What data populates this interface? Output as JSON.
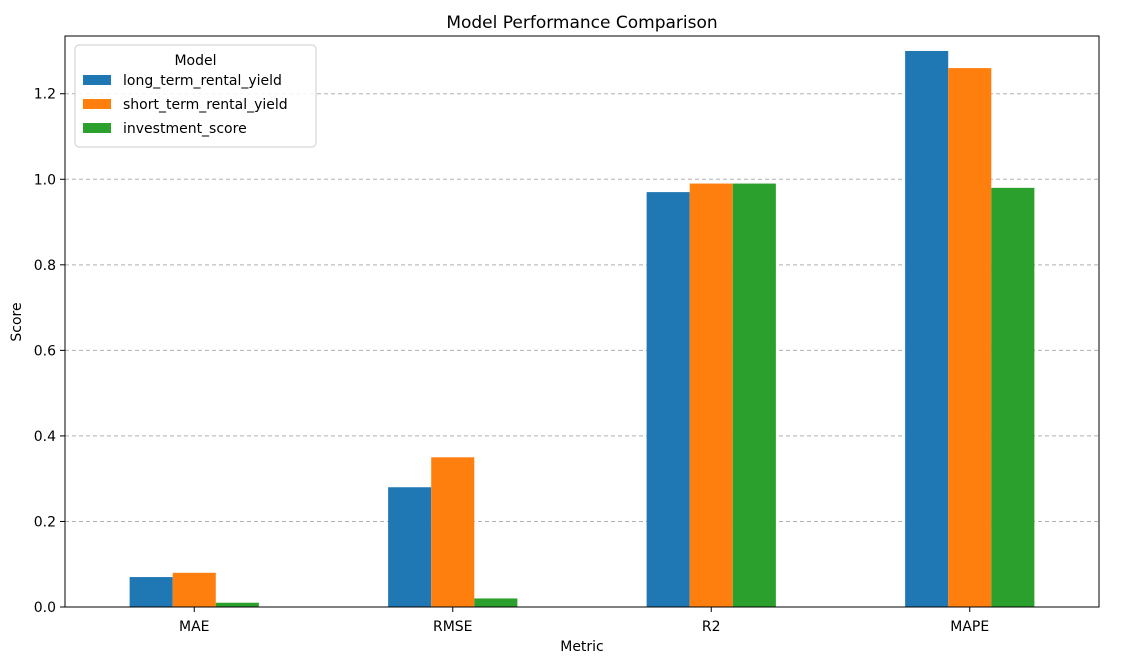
{
  "chart_data": {
    "type": "bar",
    "title": "Model Performance Comparison",
    "xlabel": "Metric",
    "ylabel": "Score",
    "categories": [
      "MAE",
      "RMSE",
      "R2",
      "MAPE"
    ],
    "series": [
      {
        "name": "long_term_rental_yield",
        "values": [
          0.07,
          0.28,
          0.97,
          1.3
        ],
        "color": "#1f77b4"
      },
      {
        "name": "short_term_rental_yield",
        "values": [
          0.08,
          0.35,
          0.99,
          1.26
        ],
        "color": "#ff7f0e"
      },
      {
        "name": "investment_score",
        "values": [
          0.01,
          0.02,
          0.99,
          0.98
        ],
        "color": "#2ca02c"
      }
    ],
    "ylim": [
      0,
      1.335
    ],
    "yticks": [
      "0.0",
      "0.2",
      "0.4",
      "0.6",
      "0.8",
      "1.0",
      "1.2"
    ],
    "grid": "horizontal-dashed",
    "legend": {
      "title": "Model",
      "position": "top-left"
    }
  }
}
